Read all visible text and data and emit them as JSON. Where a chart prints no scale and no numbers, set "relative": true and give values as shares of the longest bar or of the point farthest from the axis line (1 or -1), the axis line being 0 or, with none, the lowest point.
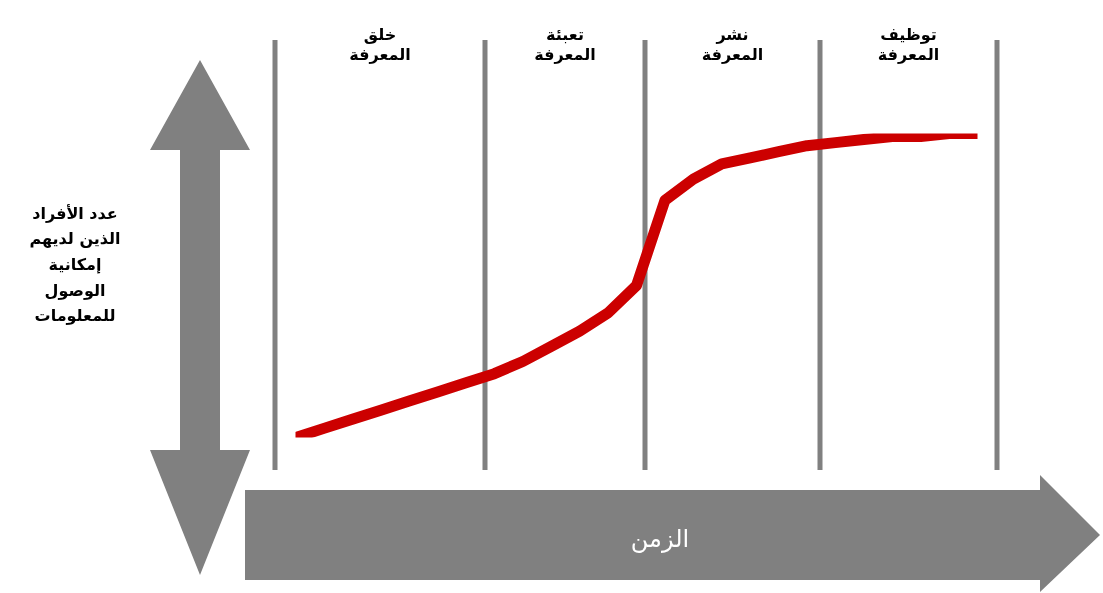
{
  "chart_data": {
    "type": "line",
    "relative": true,
    "xlabel": "الزمن",
    "annotations": [
      "خلق\nالمعرفة",
      "تعبئة\nالمعرفة",
      "نشر\nالمعرفة",
      "توظيف\nالمعرفة",
      "عدد الأفراد\nالذين لديهم\nإمكانية\nالوصول\nللمعلومات"
    ],
    "categories": [
      null,
      null,
      null,
      null,
      null,
      null,
      null,
      null,
      null,
      null,
      null,
      null,
      null,
      null,
      null,
      null,
      null,
      null,
      null,
      null,
      null,
      null,
      null,
      null,
      null
    ],
    "tick_labels": false,
    "grid": false,
    "marker": "none",
    "line_style": "solid",
    "series": [
      {
        "color": "#cc0000",
        "values": [
          0,
          0.03,
          0.06,
          0.09,
          0.12,
          0.15,
          0.18,
          0.21,
          0.25,
          0.3,
          0.35,
          0.41,
          0.5,
          0.78,
          0.85,
          0.9,
          0.92,
          0.94,
          0.96,
          0.97,
          0.98,
          0.99,
          0.99,
          1.0,
          1.0
        ]
      }
    ]
  }
}
